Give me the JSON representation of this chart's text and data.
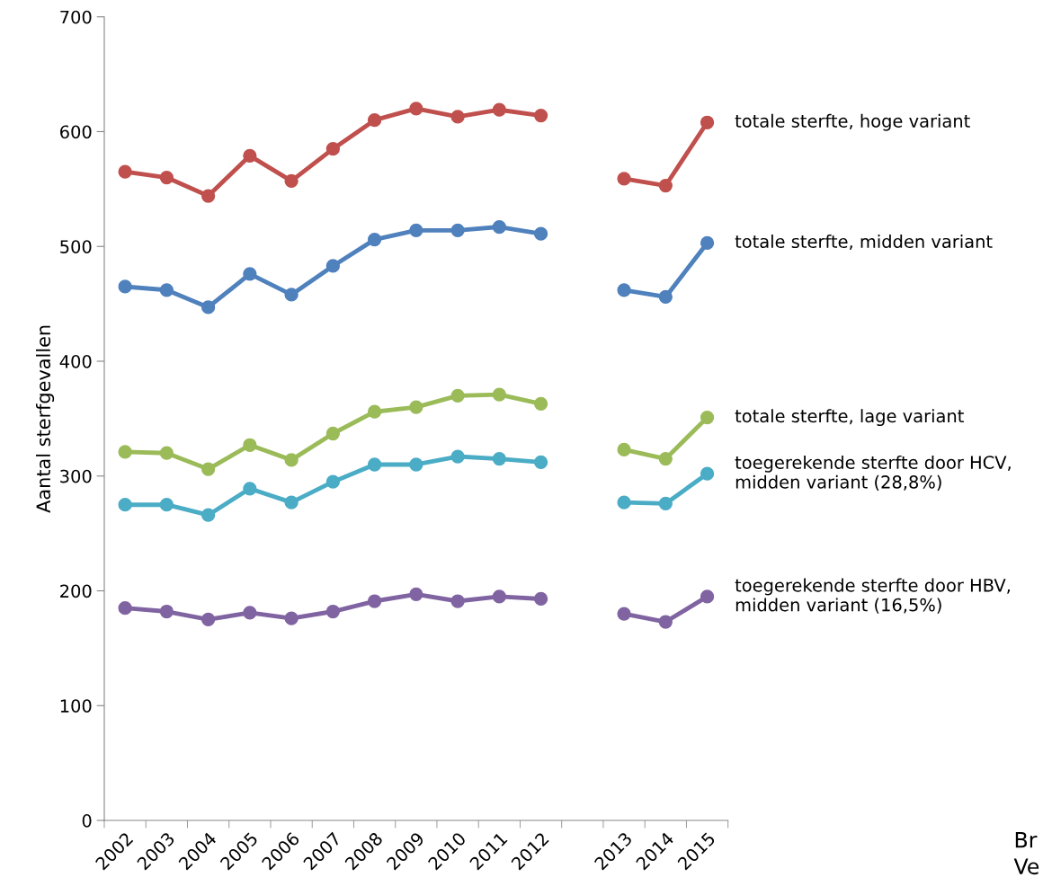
{
  "chart_data": {
    "type": "line",
    "ylabel": "Aantal sterfgevallen",
    "categories": [
      "2002",
      "2003",
      "2004",
      "2005",
      "2006",
      "2007",
      "2008",
      "2009",
      "2010",
      "2011",
      "2012",
      null,
      "2013",
      "2014",
      "2015"
    ],
    "series": [
      {
        "name": "totale sterfte, hoge variant",
        "color": "#c0504d",
        "values": [
          565,
          560,
          544,
          579,
          557,
          585,
          610,
          620,
          613,
          619,
          614,
          null,
          559,
          553,
          608
        ]
      },
      {
        "name": "totale sterfte, midden variant",
        "color": "#4f81bd",
        "values": [
          465,
          462,
          447,
          476,
          458,
          483,
          506,
          514,
          514,
          517,
          511,
          null,
          462,
          456,
          503
        ]
      },
      {
        "name": "totale sterfte, lage variant",
        "color": "#9bbb59",
        "values": [
          321,
          320,
          306,
          327,
          314,
          337,
          356,
          360,
          370,
          371,
          363,
          null,
          323,
          315,
          351
        ]
      },
      {
        "name": "toegerekende sterfte door HCV,\nmidden variant (28,8%)",
        "color": "#4bacc6",
        "values": [
          275,
          275,
          266,
          289,
          277,
          295,
          310,
          310,
          317,
          315,
          312,
          null,
          277,
          276,
          302
        ]
      },
      {
        "name": "toegerekende sterfte door HBV,\nmidden variant (16,5%)",
        "color": "#8064a2",
        "values": [
          185,
          182,
          175,
          181,
          176,
          182,
          191,
          197,
          191,
          195,
          193,
          null,
          180,
          173,
          195
        ]
      }
    ],
    "ylim": [
      0,
      700
    ],
    "yticks": [
      0,
      100,
      200,
      300,
      400,
      500,
      600,
      700
    ],
    "marker": "circle",
    "line_style": "solid",
    "grid": false,
    "legend": false,
    "annotations": [
      "Br",
      "Ve"
    ]
  }
}
